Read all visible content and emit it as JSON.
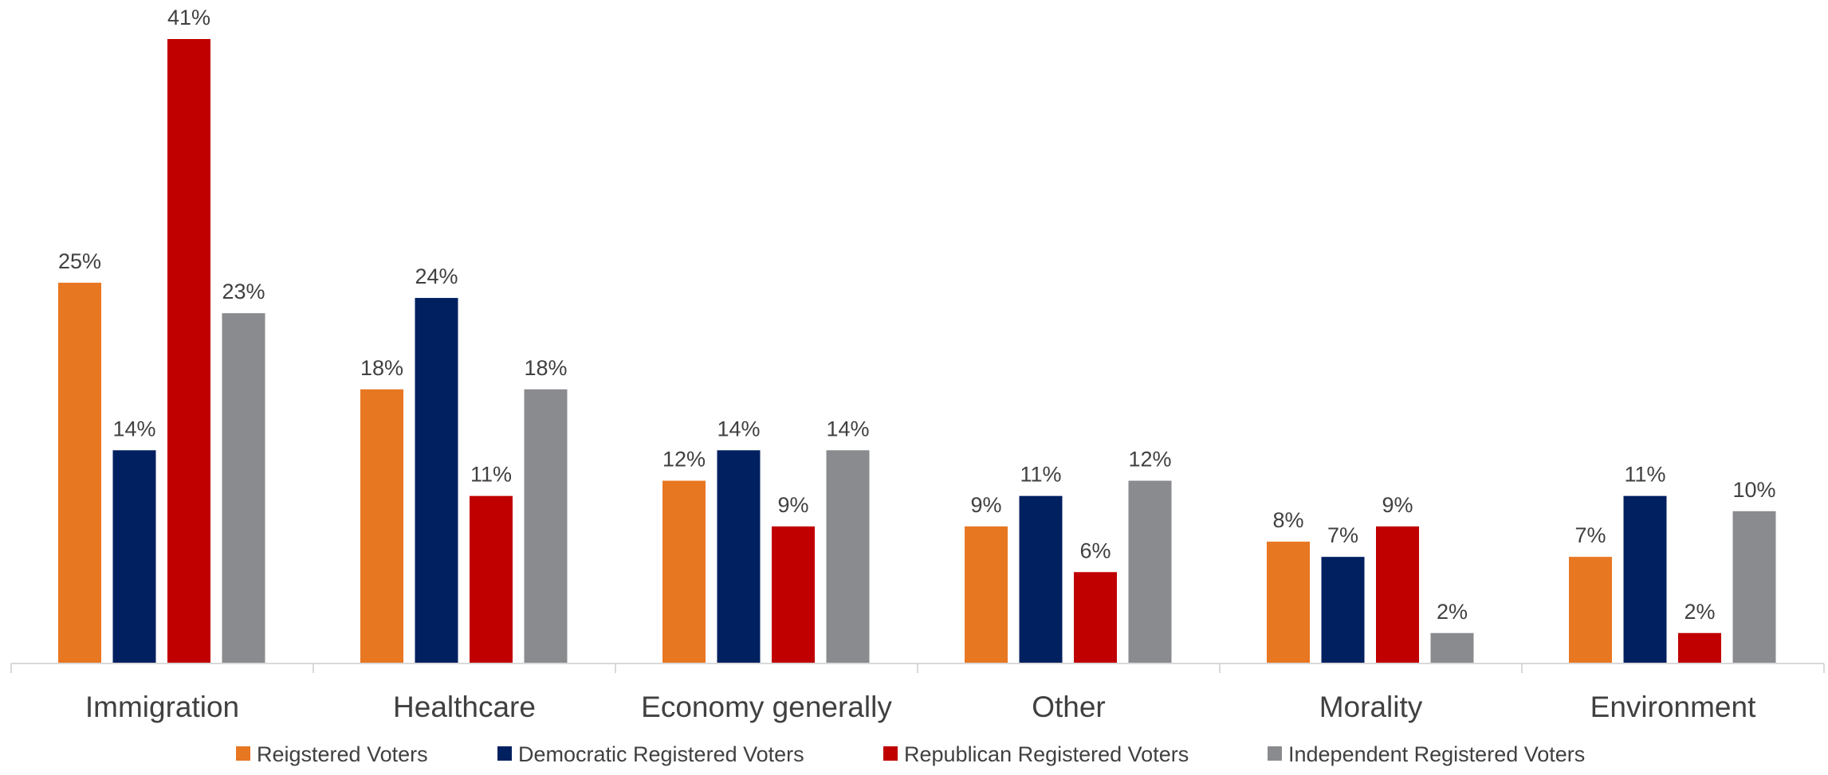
{
  "chart_data": {
    "type": "bar",
    "title": "",
    "xlabel": "",
    "ylabel": "",
    "ylim": [
      0,
      41
    ],
    "grid": false,
    "legend_position": "bottom",
    "categories": [
      "Immigration",
      "Healthcare",
      "Economy generally",
      "Other",
      "Morality",
      "Environment"
    ],
    "series": [
      {
        "name": "Reigstered Voters",
        "color": "#E87722",
        "values": [
          25,
          18,
          12,
          9,
          8,
          7
        ],
        "labels": [
          "25%",
          "18%",
          "12%",
          "9%",
          "8%",
          "7%"
        ]
      },
      {
        "name": "Democratic Registered Voters",
        "color": "#002060",
        "values": [
          14,
          24,
          14,
          11,
          7,
          11
        ],
        "labels": [
          "14%",
          "24%",
          "14%",
          "11%",
          "7%",
          "11%"
        ]
      },
      {
        "name": "Republican Registered Voters",
        "color": "#C00000",
        "values": [
          41,
          11,
          9,
          6,
          9,
          2
        ],
        "labels": [
          "41%",
          "11%",
          "9%",
          "6%",
          "9%",
          "2%"
        ]
      },
      {
        "name": "Independent Registered Voters",
        "color": "#898B8E",
        "values": [
          23,
          18,
          14,
          12,
          2,
          10
        ],
        "labels": [
          "23%",
          "18%",
          "14%",
          "12%",
          "2%",
          "10%"
        ]
      }
    ]
  }
}
